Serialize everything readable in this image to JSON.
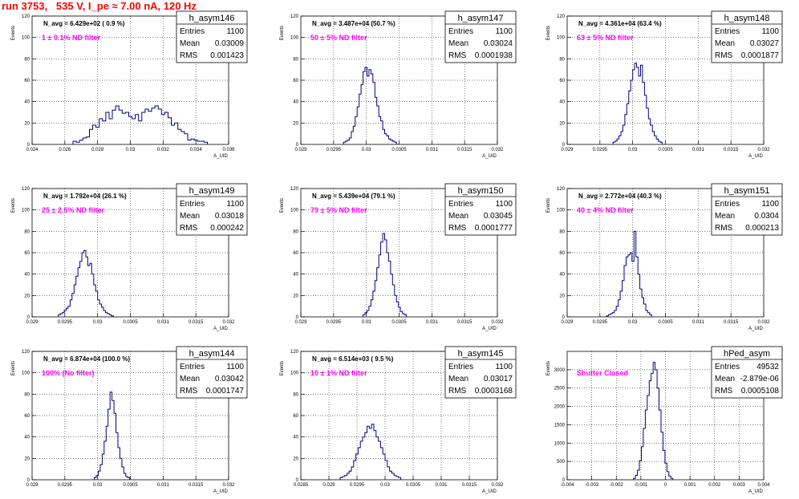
{
  "title": "run 3753,   535 V, I_pe ≈ 7.00 nA, 120 Hz",
  "chart_data": [
    {
      "type": "histogram",
      "name": "h_asym146",
      "ylabel": "Events",
      "xlabel": "A_UID",
      "xlim": [
        0.024,
        0.036
      ],
      "ylim": [
        0,
        120
      ],
      "xticks": [
        "0.024",
        "0.026",
        "0.028",
        "0.03",
        "0.032",
        "0.034",
        "0.036"
      ],
      "yticks": [
        "0",
        "20",
        "40",
        "60",
        "80",
        "100",
        "120"
      ],
      "annotation": "N_avg = 6.429e+02 ( 0.9 %)",
      "filter": "1 ± 0.1% ND filter",
      "entries": "1100",
      "mean": "0.03009",
      "rms": "0.001423",
      "bins_from": 0.0265,
      "bin_width": 0.0002,
      "counts": [
        3,
        2,
        4,
        6,
        7,
        14,
        18,
        16,
        24,
        22,
        30,
        24,
        32,
        36,
        32,
        29,
        30,
        26,
        24,
        28,
        22,
        30,
        33,
        31,
        34,
        36,
        33,
        28,
        30,
        25,
        18,
        20,
        14,
        12,
        10,
        4,
        5,
        4,
        3,
        3,
        2
      ]
    },
    {
      "type": "histogram",
      "name": "h_asym147",
      "ylabel": "Events",
      "xlabel": "A_UID",
      "xlim": [
        0.029,
        0.032
      ],
      "ylim": [
        0,
        120
      ],
      "xticks": [
        "0.029",
        "0.0295",
        "0.03",
        "0.0305",
        "0.031",
        "0.0315",
        "0.032"
      ],
      "yticks": [
        "0",
        "20",
        "40",
        "60",
        "80",
        "100",
        "120"
      ],
      "annotation": "N_avg = 3.487e+04 (50.7 %)",
      "filter": "50 ± 5% ND filter",
      "entries": "1100",
      "mean": "0.03024",
      "rms": "0.0001938",
      "bins_from": 0.02965,
      "bin_width": 3e-05,
      "counts": [
        2,
        3,
        4,
        6,
        12,
        17,
        26,
        35,
        47,
        56,
        68,
        72,
        64,
        70,
        66,
        58,
        44,
        36,
        26,
        22,
        14,
        10,
        8,
        5,
        4,
        3,
        2
      ]
    },
    {
      "type": "histogram",
      "name": "h_asym148",
      "ylabel": "Events",
      "xlabel": "A_UID",
      "xlim": [
        0.029,
        0.032
      ],
      "ylim": [
        0,
        120
      ],
      "xticks": [
        "0.029",
        "0.0295",
        "0.03",
        "0.0305",
        "0.031",
        "0.0315",
        "0.032"
      ],
      "yticks": [
        "0",
        "20",
        "40",
        "60",
        "80",
        "100",
        "120"
      ],
      "annotation": "N_avg = 4.361e+04 (63.4 %)",
      "filter": "63 ± 5% ND filter",
      "entries": "1100",
      "mean": "0.03027",
      "rms": "0.0001877",
      "bins_from": 0.0297,
      "bin_width": 3e-05,
      "counts": [
        2,
        3,
        5,
        8,
        12,
        18,
        28,
        38,
        50,
        60,
        70,
        76,
        72,
        64,
        74,
        58,
        46,
        34,
        24,
        18,
        12,
        8,
        5,
        3,
        2
      ]
    },
    {
      "type": "histogram",
      "name": "h_asym149",
      "ylabel": "Events",
      "xlabel": "A_UID",
      "xlim": [
        0.029,
        0.032
      ],
      "ylim": [
        0,
        120
      ],
      "xticks": [
        "0.029",
        "0.0295",
        "0.03",
        "0.0305",
        "0.031",
        "0.0315",
        "0.032"
      ],
      "yticks": [
        "0",
        "20",
        "40",
        "60",
        "80",
        "100",
        "120"
      ],
      "annotation": "N_avg = 1.792e+04 (26.1 %)",
      "filter": "25 ± 2.5% ND filter",
      "entries": "1100",
      "mean": "0.03018",
      "rms": "0.000242",
      "bins_from": 0.0294,
      "bin_width": 3e-05,
      "counts": [
        2,
        3,
        4,
        6,
        8,
        10,
        16,
        22,
        30,
        38,
        46,
        52,
        60,
        62,
        56,
        48,
        50,
        40,
        30,
        24,
        16,
        12,
        9,
        6,
        4,
        3,
        2,
        1
      ]
    },
    {
      "type": "histogram",
      "name": "h_asym150",
      "ylabel": "Events",
      "xlabel": "A_UID",
      "xlim": [
        0.029,
        0.032
      ],
      "ylim": [
        0,
        120
      ],
      "xticks": [
        "0.029",
        "0.0295",
        "0.03",
        "0.0305",
        "0.031",
        "0.0315",
        "0.032"
      ],
      "yticks": [
        "0",
        "20",
        "40",
        "60",
        "80",
        "100",
        "120"
      ],
      "annotation": "N_avg = 5.439e+04 (79.1 %)",
      "filter": "79 ± 5% ND filter",
      "entries": "1100",
      "mean": "0.03045",
      "rms": "0.0001777",
      "bins_from": 0.02995,
      "bin_width": 3e-05,
      "counts": [
        2,
        4,
        6,
        10,
        16,
        24,
        34,
        46,
        58,
        70,
        78,
        72,
        60,
        52,
        40,
        30,
        20,
        14,
        9,
        5,
        3,
        2
      ]
    },
    {
      "type": "histogram",
      "name": "h_asym151",
      "ylabel": "Events",
      "xlabel": "A_UID",
      "xlim": [
        0.029,
        0.032
      ],
      "ylim": [
        0,
        120
      ],
      "xticks": [
        "0.029",
        "0.0295",
        "0.03",
        "0.0305",
        "0.031",
        "0.0315",
        "0.032"
      ],
      "yticks": [
        "0",
        "20",
        "40",
        "60",
        "80",
        "100",
        "120"
      ],
      "annotation": "N_avg = 2.772e+04 (40.3 %)",
      "filter": "40 ± 4% ND filter",
      "entries": "1100",
      "mean": "0.0304",
      "rms": "0.000213",
      "bins_from": 0.0296,
      "bin_width": 3e-05,
      "counts": [
        1,
        2,
        3,
        4,
        6,
        10,
        16,
        24,
        34,
        48,
        56,
        58,
        60,
        52,
        80,
        56,
        40,
        26,
        18,
        12,
        6,
        4,
        2
      ]
    },
    {
      "type": "histogram",
      "name": "h_asym144",
      "ylabel": "Events",
      "xlabel": "A_UID",
      "xlim": [
        0.029,
        0.032
      ],
      "ylim": [
        0,
        120
      ],
      "xticks": [
        "0.029",
        "0.0295",
        "0.03",
        "0.0305",
        "0.031",
        "0.0315",
        "0.032"
      ],
      "yticks": [
        "0",
        "20",
        "40",
        "60",
        "80",
        "100",
        "120"
      ],
      "annotation": "N_avg = 6.874e+04 (100.0 %)",
      "filter": "100% (No filter)",
      "entries": "1100",
      "mean": "0.03042",
      "rms": "0.0001747",
      "bins_from": 0.02995,
      "bin_width": 3e-05,
      "counts": [
        2,
        4,
        8,
        14,
        24,
        36,
        50,
        66,
        82,
        74,
        62,
        44,
        30,
        20,
        12,
        6,
        3,
        2
      ]
    },
    {
      "type": "histogram",
      "name": "h_asym145",
      "ylabel": "Events",
      "xlabel": "A_UID",
      "xlim": [
        0.0285,
        0.032
      ],
      "ylim": [
        0,
        120
      ],
      "xticks": [
        "0.0285",
        "0.029",
        "0.0295",
        "0.03",
        "0.0305",
        "0.031",
        "0.0315",
        "0.032"
      ],
      "yticks": [
        "0",
        "20",
        "40",
        "60",
        "80",
        "100",
        "120"
      ],
      "annotation": "N_avg = 6.514e+03 ( 9.5 %)",
      "filter": "10 ± 1% ND filter",
      "entries": "1100",
      "mean": "0.03017",
      "rms": "0.0003168",
      "bins_from": 0.0292,
      "bin_width": 4e-05,
      "counts": [
        2,
        3,
        4,
        6,
        8,
        12,
        18,
        24,
        30,
        36,
        40,
        44,
        50,
        48,
        52,
        46,
        40,
        36,
        30,
        24,
        18,
        12,
        8,
        6,
        4,
        3,
        2
      ]
    },
    {
      "type": "histogram",
      "name": "hPed_asym",
      "ylabel": "Events",
      "xlabel": "A_UID",
      "xlim": [
        -0.004,
        0.004
      ],
      "ylim": [
        0,
        3500
      ],
      "xticks": [
        "-0.004",
        "-0.003",
        "-0.002",
        "-0.001",
        "0",
        "0.001",
        "0.002",
        "0.003",
        "0.004"
      ],
      "yticks": [
        "0",
        "500",
        "1000",
        "1500",
        "2000",
        "2500",
        "3000"
      ],
      "annotation": "",
      "filter": "Shutter Closed",
      "entries": "49532",
      "mean": "-2.879e-06",
      "rms": "0.0005108",
      "bins_from": -0.0013,
      "bin_width": 8e-05,
      "counts": [
        40,
        120,
        260,
        520,
        900,
        1400,
        1900,
        2300,
        2700,
        2900,
        3200,
        3000,
        2500,
        1900,
        1300,
        800,
        450,
        220,
        100,
        40
      ]
    }
  ],
  "labels": {
    "entries": "Entries",
    "mean": "Mean",
    "rms": "RMS"
  }
}
